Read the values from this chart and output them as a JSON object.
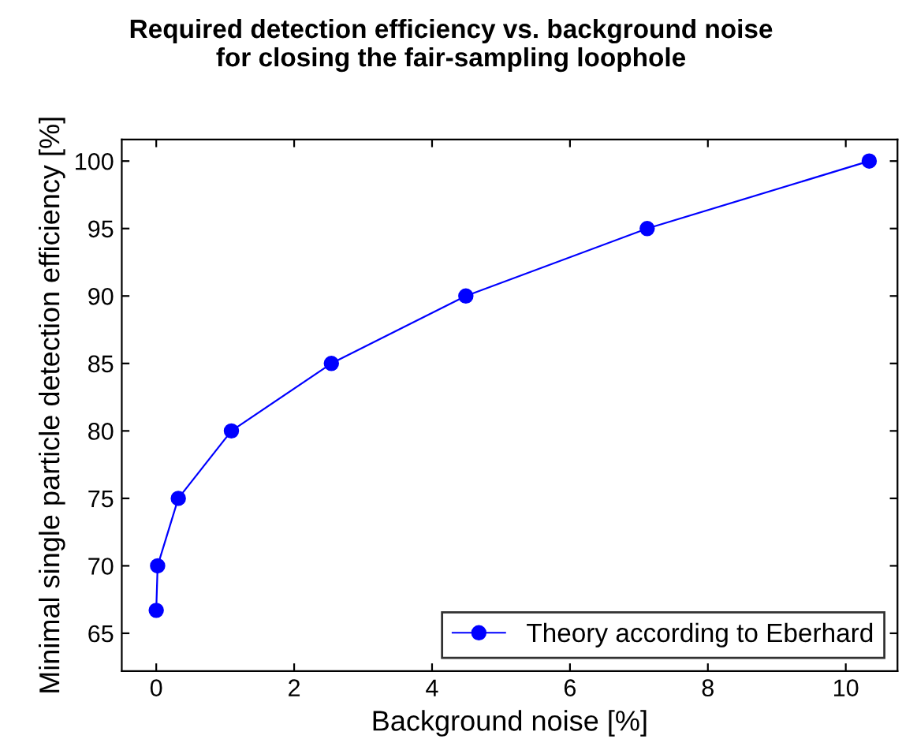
{
  "chart_data": {
    "type": "line",
    "title": "Required detection efficiency vs. background noise\nfor closing the fair-sampling loophole",
    "xlabel": "Background noise [%]",
    "ylabel": "Minimal single particle detection efficiency [%]",
    "series": [
      {
        "name": "Theory according to Eberhard",
        "color": "#0000ff",
        "x": [
          0,
          0.02,
          0.32,
          1.09,
          2.54,
          4.49,
          7.12,
          10.34
        ],
        "values": [
          66.7,
          70,
          75,
          80,
          85,
          90,
          95,
          100
        ]
      }
    ],
    "xlim": [
      -0.5,
      10.75
    ],
    "xticks": [
      0,
      2,
      4,
      6,
      8,
      10
    ],
    "ylim": [
      62.2,
      101.6
    ],
    "yticks": [
      65,
      70,
      75,
      80,
      85,
      90,
      95,
      100
    ],
    "marker": "circle",
    "line_style": "solid",
    "legend": "bottom right",
    "grid": false
  }
}
